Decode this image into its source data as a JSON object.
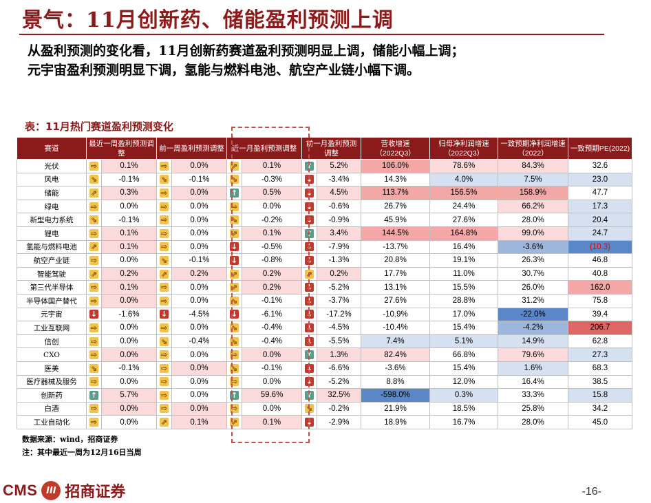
{
  "title": "景气：11月创新药、储能盈利预测上调",
  "summary": [
    "从盈利预测的变化看，11月创新药赛道盈利预测明显上调，储能小幅上调；",
    "元宇宙盈利预测明显下调，氢能与燃料电池、航空产业链小幅下调。"
  ],
  "table_caption": "表：11月热门赛道盈利预测变化",
  "headers": {
    "sector": "赛道",
    "w1": "最近一周盈利预测调整",
    "w2": "前一周盈利预测调整",
    "m1": "近一月盈利预测调整",
    "m2": "前一月盈利预测调整",
    "rev": "营收增速（2022Q3）",
    "np": "归母净利润增速（2022Q3）",
    "cons": "一致预期净利润增速（2022）",
    "pe": "一致预期PE(2022)"
  },
  "colors": {
    "header_bg": "#8B1A1A",
    "title": "#8B1A1A",
    "pink_strong": "#F4A7A7",
    "pink_light": "#FADADA",
    "blue_light": "#D5E0F0",
    "blue_mid": "#9DB6DC",
    "blue_strong": "#5B86C8"
  },
  "rows": [
    {
      "name": "光伏",
      "w1": {
        "icon": "right",
        "v": "0.1%",
        "hl": "p1"
      },
      "w2": {
        "icon": "right",
        "v": "0.0%",
        "hl": "p1"
      },
      "m1": {
        "icon": "upright",
        "v": "0.1%",
        "hl": "p1"
      },
      "m2": {
        "icon": "up",
        "v": "5.2%",
        "hl": "p1"
      },
      "rev": {
        "v": "106.0%",
        "hl": "p2"
      },
      "np": {
        "v": "78.6%",
        "hl": "p1"
      },
      "cons": {
        "v": "84.3%",
        "hl": "p1"
      },
      "pe": {
        "v": "32.6",
        "hl": "n"
      }
    },
    {
      "name": "风电",
      "w1": {
        "icon": "downright",
        "v": "-0.1%",
        "hl": "n"
      },
      "w2": {
        "icon": "downright",
        "v": "-0.1%",
        "hl": "n"
      },
      "m1": {
        "icon": "downright",
        "v": "-0.3%",
        "hl": "n"
      },
      "m2": {
        "icon": "down",
        "v": "-3.4%",
        "hl": "n"
      },
      "rev": {
        "v": "14.3%",
        "hl": "n"
      },
      "np": {
        "v": "4.0%",
        "hl": "b1"
      },
      "cons": {
        "v": "7.5%",
        "hl": "b1"
      },
      "pe": {
        "v": "23.0",
        "hl": "b1"
      }
    },
    {
      "name": "储能",
      "w1": {
        "icon": "upright",
        "v": "0.3%",
        "hl": "p1"
      },
      "w2": {
        "icon": "right",
        "v": "0.0%",
        "hl": "p1"
      },
      "m1": {
        "icon": "up",
        "v": "0.5%",
        "hl": "p1"
      },
      "m2": {
        "icon": "down",
        "v": "4.5%",
        "hl": "p1"
      },
      "rev": {
        "v": "113.7%",
        "hl": "p2"
      },
      "np": {
        "v": "156.5%",
        "hl": "p2"
      },
      "cons": {
        "v": "158.9%",
        "hl": "p2"
      },
      "pe": {
        "v": "47.7",
        "hl": "n"
      }
    },
    {
      "name": "绿电",
      "w1": {
        "icon": "right",
        "v": "0.0%",
        "hl": "n"
      },
      "w2": {
        "icon": "right",
        "v": "0.0%",
        "hl": "n"
      },
      "m1": {
        "icon": "right",
        "v": "0.0%",
        "hl": "n"
      },
      "m2": {
        "icon": "down",
        "v": "-0.6%",
        "hl": "n"
      },
      "rev": {
        "v": "26.7%",
        "hl": "n"
      },
      "np": {
        "v": "24.4%",
        "hl": "n"
      },
      "cons": {
        "v": "66.2%",
        "hl": "p1"
      },
      "pe": {
        "v": "17.3",
        "hl": "b1"
      }
    },
    {
      "name": "新型电力系统",
      "w1": {
        "icon": "downright",
        "v": "-0.1%",
        "hl": "n"
      },
      "w2": {
        "icon": "right",
        "v": "0.0%",
        "hl": "n"
      },
      "m1": {
        "icon": "downright",
        "v": "-0.2%",
        "hl": "n"
      },
      "m2": {
        "icon": "down",
        "v": "-0.9%",
        "hl": "n"
      },
      "rev": {
        "v": "45.9%",
        "hl": "n"
      },
      "np": {
        "v": "27.6%",
        "hl": "n"
      },
      "cons": {
        "v": "28.0%",
        "hl": "n"
      },
      "pe": {
        "v": "20.4",
        "hl": "b1"
      }
    },
    {
      "name": "锂电",
      "w1": {
        "icon": "right",
        "v": "0.1%",
        "hl": "p1"
      },
      "w2": {
        "icon": "right",
        "v": "0.0%",
        "hl": "n"
      },
      "m1": {
        "icon": "upright",
        "v": "0.1%",
        "hl": "p1"
      },
      "m2": {
        "icon": "up",
        "v": "3.4%",
        "hl": "p1"
      },
      "rev": {
        "v": "144.5%",
        "hl": "p2"
      },
      "np": {
        "v": "164.8%",
        "hl": "p2"
      },
      "cons": {
        "v": "99.0%",
        "hl": "p1"
      },
      "pe": {
        "v": "24.7",
        "hl": "b1"
      }
    },
    {
      "name": "氢能与燃料电池",
      "w1": {
        "icon": "upright",
        "v": "0.1%",
        "hl": "p1"
      },
      "w2": {
        "icon": "right",
        "v": "0.0%",
        "hl": "n"
      },
      "m1": {
        "icon": "down",
        "v": "-0.5%",
        "hl": "n"
      },
      "m2": {
        "icon": "down",
        "v": "-7.9%",
        "hl": "n"
      },
      "rev": {
        "v": "-13.7%",
        "hl": "n"
      },
      "np": {
        "v": "16.4%",
        "hl": "n"
      },
      "cons": {
        "v": "-3.6%",
        "hl": "b2"
      },
      "pe": {
        "v": "(10.3)",
        "hl": "b3",
        "red": true
      }
    },
    {
      "name": "航空产业链",
      "w1": {
        "icon": "right",
        "v": "0.0%",
        "hl": "n"
      },
      "w2": {
        "icon": "downright",
        "v": "-0.1%",
        "hl": "n"
      },
      "m1": {
        "icon": "down",
        "v": "-0.8%",
        "hl": "n"
      },
      "m2": {
        "icon": "down",
        "v": "-1.3%",
        "hl": "n"
      },
      "rev": {
        "v": "20.8%",
        "hl": "n"
      },
      "np": {
        "v": "19.1%",
        "hl": "n"
      },
      "cons": {
        "v": "26.3%",
        "hl": "n"
      },
      "pe": {
        "v": "46.8",
        "hl": "n"
      }
    },
    {
      "name": "智能驾驶",
      "w1": {
        "icon": "upright",
        "v": "0.2%",
        "hl": "p1"
      },
      "w2": {
        "icon": "upright",
        "v": "0.2%",
        "hl": "p1"
      },
      "m1": {
        "icon": "upright",
        "v": "0.2%",
        "hl": "p1"
      },
      "m2": {
        "icon": "upright",
        "v": "0.2%",
        "hl": "p1"
      },
      "rev": {
        "v": "17.7%",
        "hl": "n"
      },
      "np": {
        "v": "11.0%",
        "hl": "n"
      },
      "cons": {
        "v": "30.7%",
        "hl": "n"
      },
      "pe": {
        "v": "40.8",
        "hl": "n"
      }
    },
    {
      "name": "第三代半导体",
      "w1": {
        "icon": "right",
        "v": "0.1%",
        "hl": "p1"
      },
      "w2": {
        "icon": "right",
        "v": "0.0%",
        "hl": "n"
      },
      "m1": {
        "icon": "upright",
        "v": "0.2%",
        "hl": "p1"
      },
      "m2": {
        "icon": "down",
        "v": "-5.2%",
        "hl": "n"
      },
      "rev": {
        "v": "13.1%",
        "hl": "n"
      },
      "np": {
        "v": "15.5%",
        "hl": "n"
      },
      "cons": {
        "v": "26.0%",
        "hl": "n"
      },
      "pe": {
        "v": "162.0",
        "hl": "p2"
      }
    },
    {
      "name": "半导体国产替代",
      "w1": {
        "icon": "right",
        "v": "0.0%",
        "hl": "p1"
      },
      "w2": {
        "icon": "right",
        "v": "0.0%",
        "hl": "n"
      },
      "m1": {
        "icon": "downright",
        "v": "-0.1%",
        "hl": "n"
      },
      "m2": {
        "icon": "down",
        "v": "-3.7%",
        "hl": "n"
      },
      "rev": {
        "v": "27.6%",
        "hl": "n"
      },
      "np": {
        "v": "28.8%",
        "hl": "n"
      },
      "cons": {
        "v": "31.2%",
        "hl": "n"
      },
      "pe": {
        "v": "75.8",
        "hl": "n"
      }
    },
    {
      "name": "元宇宙",
      "w1": {
        "icon": "down",
        "v": "-1.6%",
        "hl": "n"
      },
      "w2": {
        "icon": "down",
        "v": "-4.5%",
        "hl": "n"
      },
      "m1": {
        "icon": "down",
        "v": "-6.1%",
        "hl": "n"
      },
      "m2": {
        "icon": "down",
        "v": "-17.2%",
        "hl": "n"
      },
      "rev": {
        "v": "-10.9%",
        "hl": "n"
      },
      "np": {
        "v": "17.0%",
        "hl": "n"
      },
      "cons": {
        "v": "-22.0%",
        "hl": "b3"
      },
      "pe": {
        "v": "39.4",
        "hl": "n"
      }
    },
    {
      "name": "工业互联网",
      "w1": {
        "icon": "right",
        "v": "0.0%",
        "hl": "n"
      },
      "w2": {
        "icon": "right",
        "v": "0.0%",
        "hl": "n"
      },
      "m1": {
        "icon": "downright",
        "v": "-0.4%",
        "hl": "n"
      },
      "m2": {
        "icon": "down",
        "v": "-4.5%",
        "hl": "n"
      },
      "rev": {
        "v": "-10.4%",
        "hl": "n"
      },
      "np": {
        "v": "15.4%",
        "hl": "n"
      },
      "cons": {
        "v": "-4.2%",
        "hl": "b2"
      },
      "pe": {
        "v": "206.7",
        "hl": "p3"
      }
    },
    {
      "name": "信创",
      "w1": {
        "icon": "right",
        "v": "0.0%",
        "hl": "n"
      },
      "w2": {
        "icon": "downright",
        "v": "-0.4%",
        "hl": "n"
      },
      "m1": {
        "icon": "downright",
        "v": "-0.4%",
        "hl": "n"
      },
      "m2": {
        "icon": "down",
        "v": "-5.5%",
        "hl": "n"
      },
      "rev": {
        "v": "7.4%",
        "hl": "b1"
      },
      "np": {
        "v": "5.1%",
        "hl": "b1"
      },
      "cons": {
        "v": "14.9%",
        "hl": "b1"
      },
      "pe": {
        "v": "62.8",
        "hl": "n"
      }
    },
    {
      "name": "CXO",
      "w1": {
        "icon": "right",
        "v": "0.0%",
        "hl": "p1"
      },
      "w2": {
        "icon": "right",
        "v": "0.0%",
        "hl": "n"
      },
      "m1": {
        "icon": "right",
        "v": "0.0%",
        "hl": "p1"
      },
      "m2": {
        "icon": "up",
        "v": "1.3%",
        "hl": "p1"
      },
      "rev": {
        "v": "82.4%",
        "hl": "p1"
      },
      "np": {
        "v": "66.8%",
        "hl": "n"
      },
      "cons": {
        "v": "79.6%",
        "hl": "p1"
      },
      "pe": {
        "v": "27.3",
        "hl": "b1"
      }
    },
    {
      "name": "医美",
      "w1": {
        "icon": "downright",
        "v": "-0.1%",
        "hl": "n"
      },
      "w2": {
        "icon": "right",
        "v": "0.0%",
        "hl": "p1"
      },
      "m1": {
        "icon": "downright",
        "v": "-0.1%",
        "hl": "n"
      },
      "m2": {
        "icon": "down",
        "v": "-6.6%",
        "hl": "n"
      },
      "rev": {
        "v": "-3.6%",
        "hl": "n"
      },
      "np": {
        "v": "15.4%",
        "hl": "n"
      },
      "cons": {
        "v": "1.6%",
        "hl": "b1"
      },
      "pe": {
        "v": "68.3",
        "hl": "n"
      }
    },
    {
      "name": "医疗器械及服务",
      "w1": {
        "icon": "right",
        "v": "0.0%",
        "hl": "n"
      },
      "w2": {
        "icon": "right",
        "v": "0.0%",
        "hl": "n"
      },
      "m1": {
        "icon": "right",
        "v": "0.0%",
        "hl": "n"
      },
      "m2": {
        "icon": "down",
        "v": "-5.2%",
        "hl": "n"
      },
      "rev": {
        "v": "8.8%",
        "hl": "n"
      },
      "np": {
        "v": "12.0%",
        "hl": "n"
      },
      "cons": {
        "v": "16.4%",
        "hl": "n"
      },
      "pe": {
        "v": "38.5",
        "hl": "n"
      }
    },
    {
      "name": "创新药",
      "w1": {
        "icon": "up",
        "v": "5.7%",
        "hl": "p1"
      },
      "w2": {
        "icon": "right",
        "v": "0.0%",
        "hl": "n"
      },
      "m1": {
        "icon": "up",
        "v": "59.6%",
        "hl": "p1"
      },
      "m2": {
        "icon": "up",
        "v": "32.5%",
        "hl": "p1"
      },
      "rev": {
        "v": "-598.0%",
        "hl": "b3"
      },
      "np": {
        "v": "0.3%",
        "hl": "b1"
      },
      "cons": {
        "v": "33.3%",
        "hl": "n"
      },
      "pe": {
        "v": "15.8",
        "hl": "b1"
      }
    },
    {
      "name": "白酒",
      "w1": {
        "icon": "right",
        "v": "0.0%",
        "hl": "p1"
      },
      "w2": {
        "icon": "right",
        "v": "0.0%",
        "hl": "p1"
      },
      "m1": {
        "icon": "right",
        "v": "0.0%",
        "hl": "n"
      },
      "m2": {
        "icon": "downright",
        "v": "-0.2%",
        "hl": "n"
      },
      "rev": {
        "v": "21.9%",
        "hl": "n"
      },
      "np": {
        "v": "18.5%",
        "hl": "n"
      },
      "cons": {
        "v": "25.8%",
        "hl": "n"
      },
      "pe": {
        "v": "34.2",
        "hl": "n"
      }
    },
    {
      "name": "工业自动化",
      "w1": {
        "icon": "right",
        "v": "0.0%",
        "hl": "n"
      },
      "w2": {
        "icon": "upright",
        "v": "0.1%",
        "hl": "p1"
      },
      "m1": {
        "icon": "upright",
        "v": "0.1%",
        "hl": "p1"
      },
      "m2": {
        "icon": "down",
        "v": "-2.9%",
        "hl": "n"
      },
      "rev": {
        "v": "18.9%",
        "hl": "n"
      },
      "np": {
        "v": "16.7%",
        "hl": "n"
      },
      "cons": {
        "v": "28.0%",
        "hl": "n"
      },
      "pe": {
        "v": "45.0",
        "hl": "n"
      }
    }
  ],
  "source_note": "数据来源：wind，招商证券",
  "date_note": "注：其中最近一周为12月16日当周",
  "footer": {
    "logo_text": "CMS",
    "logo_mark": "III",
    "logo_cn": "招商证券",
    "page": "-16-"
  }
}
